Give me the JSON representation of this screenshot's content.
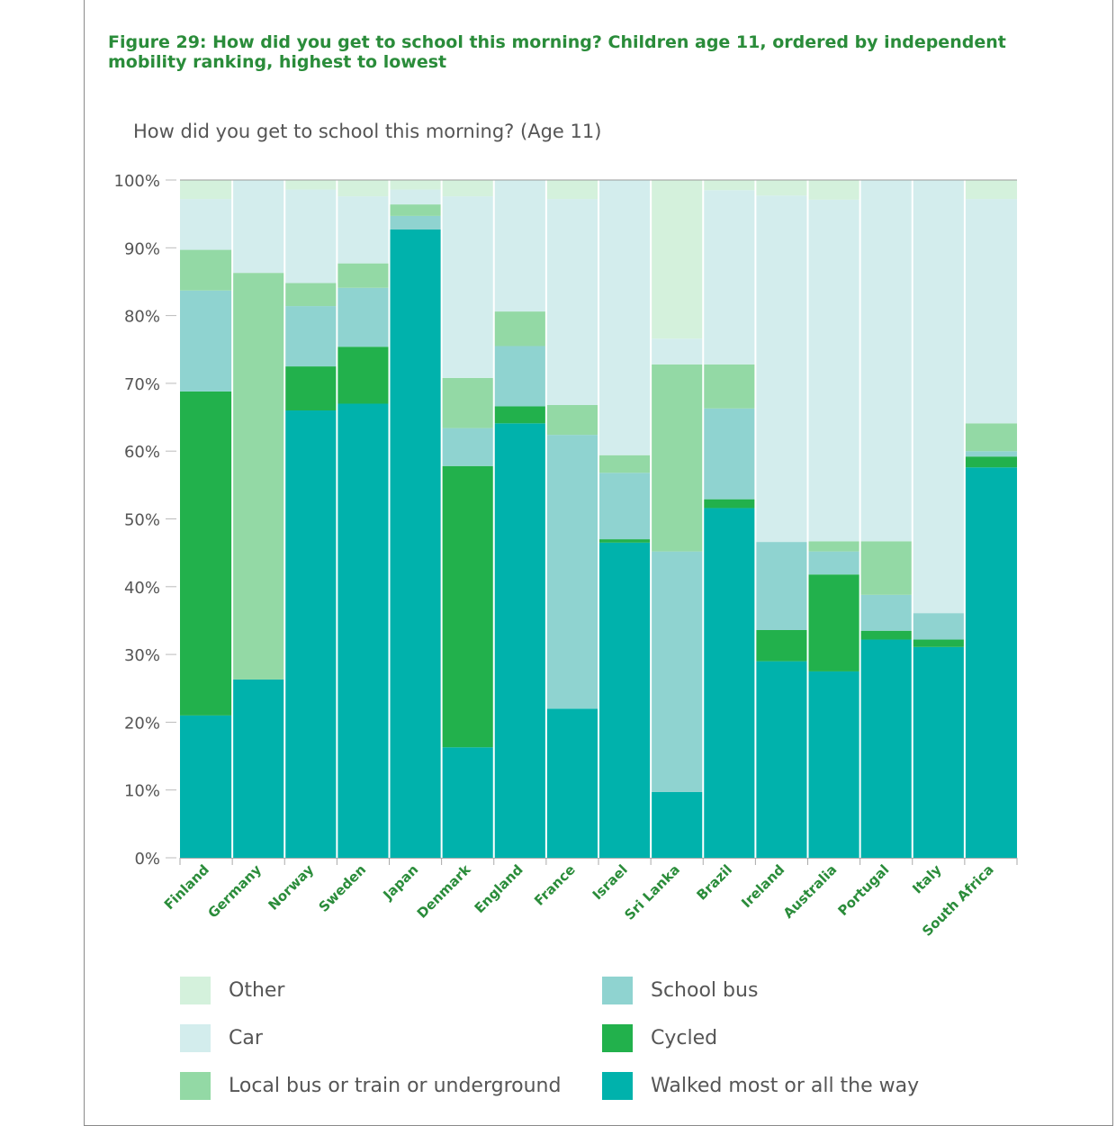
{
  "figure_title": "Figure 29: How did you get to school this morning? Children age 11, ordered by independent mobility ranking, highest to lowest",
  "chart_data": {
    "type": "bar",
    "stacked": true,
    "title": "How did you get to school this morning? (Age 11)",
    "xlabel": "",
    "ylabel": "",
    "ylim": [
      0,
      100
    ],
    "y_ticks": [
      "0%",
      "10%",
      "20%",
      "30%",
      "40%",
      "50%",
      "60%",
      "70%",
      "80%",
      "90%",
      "100%"
    ],
    "grid": false,
    "legend_position": "bottom",
    "categories": [
      "Finland",
      "Germany",
      "Norway",
      "Sweden",
      "Japan",
      "Denmark",
      "England",
      "France",
      "Israel",
      "Sri Lanka",
      "Brazil",
      "Ireland",
      "Australia",
      "Portugal",
      "Italy",
      "South Africa"
    ],
    "series": [
      {
        "name": "Walked most or all the way",
        "color": "#00b2ac",
        "values": [
          21,
          26.3,
          66,
          67,
          92.7,
          16.3,
          64.1,
          22,
          46.5,
          9.7,
          51.6,
          29,
          27.5,
          32.2,
          31.1,
          57.6
        ]
      },
      {
        "name": "Cycled",
        "color": "#22b14c",
        "values": [
          47.8,
          0,
          6.5,
          8.4,
          0,
          41.5,
          2.5,
          0,
          0.5,
          0,
          1.3,
          4.6,
          14.3,
          1.3,
          1.1,
          1.6
        ]
      },
      {
        "name": "School bus",
        "color": "#8fd3d0",
        "values": [
          14.9,
          0,
          8.9,
          8.7,
          2,
          5.6,
          8.9,
          40.4,
          9.8,
          35.5,
          13.4,
          13,
          3.4,
          5.3,
          3.9,
          0.8
        ]
      },
      {
        "name": "Local bus or train or underground",
        "color": "#93d9a5",
        "values": [
          6,
          60,
          3.4,
          3.6,
          1.7,
          7.4,
          5.1,
          4.4,
          2.6,
          27.6,
          6.5,
          0,
          1.5,
          7.9,
          0,
          4.1
        ]
      },
      {
        "name": "Car",
        "color": "#d3eded",
        "values": [
          7.5,
          13.7,
          13.8,
          9.9,
          2.2,
          26.8,
          19.4,
          30.4,
          40.6,
          3.8,
          25.7,
          51.1,
          50.4,
          53.3,
          63.9,
          33.1
        ]
      },
      {
        "name": "Other",
        "color": "#d4f1dc",
        "values": [
          2.8,
          0,
          1.4,
          2.4,
          1.4,
          2.4,
          0,
          2.8,
          0,
          23.4,
          1.5,
          2.3,
          2.9,
          0,
          0,
          2.8
        ]
      }
    ]
  },
  "legend": {
    "items": [
      {
        "label": "Other",
        "color": "#d4f1dc"
      },
      {
        "label": "School bus",
        "color": "#8fd3d0"
      },
      {
        "label": "Car",
        "color": "#d3eded"
      },
      {
        "label": "Cycled",
        "color": "#22b14c"
      },
      {
        "label": "Local bus or train or underground",
        "color": "#93d9a5"
      },
      {
        "label": "Walked most or all the way",
        "color": "#00b2ac"
      }
    ]
  }
}
